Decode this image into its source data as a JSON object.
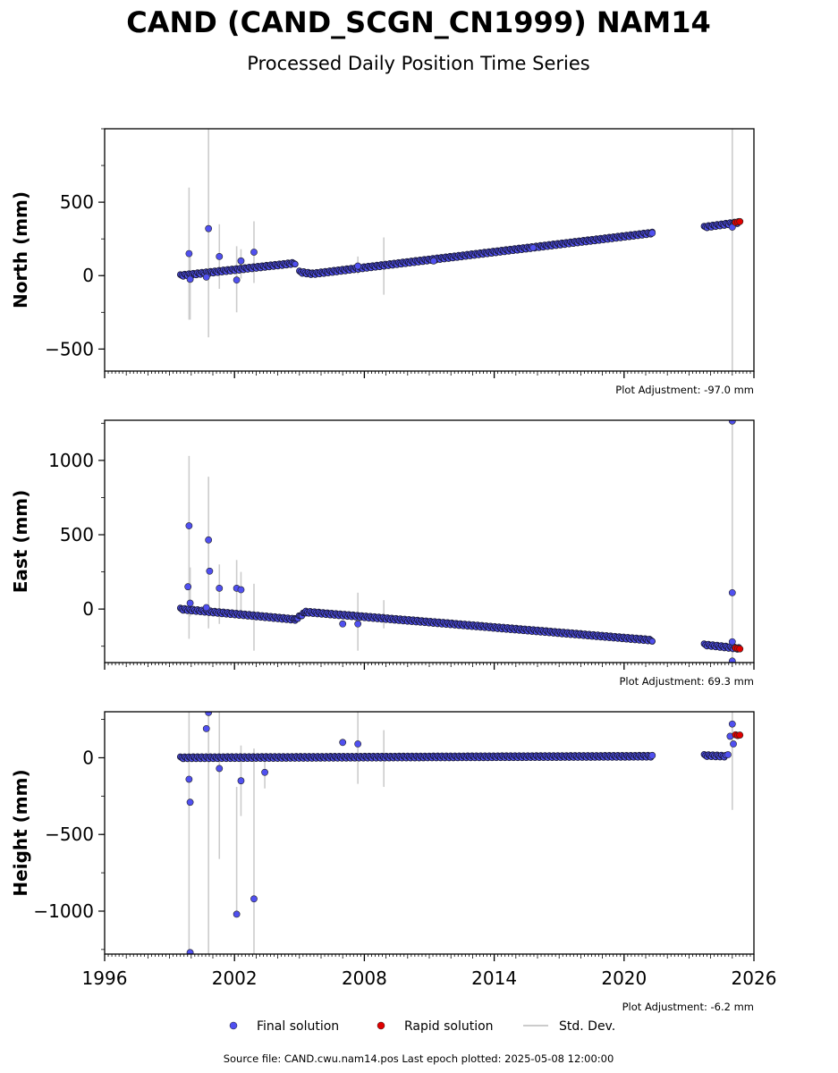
{
  "title": "CAND (CAND_SCGN_CN1999) NAM14",
  "subtitle": "Processed Daily Position Time Series",
  "legend": {
    "final": "Final solution",
    "rapid": "Rapid solution",
    "std": "Std. Dev.",
    "final_color": "#5050f0",
    "rapid_color": "#e00000",
    "std_color": "#cccccc"
  },
  "footer": "Source file: CAND.cwu.nam14.pos  Last epoch plotted: 2025-05-08 12:00:00",
  "chart_data": [
    {
      "type": "scatter",
      "ylabel": "North (mm)",
      "adjustment": "Plot Adjustment: -97.0 mm",
      "xlim": [
        1996,
        2026
      ],
      "ylim": [
        -650,
        1000
      ],
      "yticks": [
        -500,
        0,
        500
      ],
      "trend_segments": [
        {
          "x": [
            1999.5,
            2004.8
          ],
          "y": [
            0,
            85
          ]
        },
        {
          "x": [
            2005.0,
            2005.6
          ],
          "y": [
            25,
            12
          ]
        },
        {
          "x": [
            2005.6,
            2021.3
          ],
          "y": [
            12,
            290
          ]
        },
        {
          "x": [
            2023.7,
            2025.3
          ],
          "y": [
            330,
            362
          ]
        }
      ],
      "final_points": [
        [
          1999.9,
          150
        ],
        [
          1999.95,
          -25
        ],
        [
          2000.8,
          320
        ],
        [
          2000.7,
          -10
        ],
        [
          2001.3,
          130
        ],
        [
          2002.1,
          -30
        ],
        [
          2002.3,
          100
        ],
        [
          2002.9,
          160
        ],
        [
          2007.7,
          65
        ],
        [
          2011.2,
          100
        ],
        [
          2015.8,
          190
        ],
        [
          2025.0,
          330
        ],
        [
          2021.3,
          290
        ]
      ],
      "rapid_points": [
        [
          2025.15,
          362
        ],
        [
          2025.25,
          365
        ],
        [
          2025.35,
          368
        ]
      ],
      "error_bars": [
        [
          1999.9,
          -300,
          600
        ],
        [
          1999.95,
          -300,
          150
        ],
        [
          2000.8,
          -420,
          1000
        ],
        [
          2001.3,
          -90,
          350
        ],
        [
          2002.1,
          -250,
          200
        ],
        [
          2002.3,
          -20,
          180
        ],
        [
          2002.9,
          -50,
          370
        ],
        [
          2007.7,
          10,
          130
        ],
        [
          2008.9,
          -130,
          260
        ],
        [
          2025.0,
          -650,
          1000
        ]
      ]
    },
    {
      "type": "scatter",
      "ylabel": "East (mm)",
      "adjustment": "Plot Adjustment: 69.3 mm",
      "xlim": [
        1996,
        2026
      ],
      "ylim": [
        -360,
        1270
      ],
      "yticks": [
        0,
        500,
        1000
      ],
      "trend_segments": [
        {
          "x": [
            1999.5,
            2004.8
          ],
          "y": [
            0,
            -70
          ]
        },
        {
          "x": [
            2004.8,
            2005.3
          ],
          "y": [
            -70,
            -20
          ]
        },
        {
          "x": [
            2005.3,
            2021.3
          ],
          "y": [
            -20,
            -210
          ]
        },
        {
          "x": [
            2023.7,
            2025.3
          ],
          "y": [
            -240,
            -265
          ]
        }
      ],
      "final_points": [
        [
          1999.9,
          560
        ],
        [
          1999.85,
          150
        ],
        [
          1999.95,
          40
        ],
        [
          2000.8,
          465
        ],
        [
          2000.85,
          255
        ],
        [
          2000.7,
          10
        ],
        [
          2001.3,
          140
        ],
        [
          2002.1,
          140
        ],
        [
          2002.3,
          130
        ],
        [
          2007.0,
          -100
        ],
        [
          2007.7,
          -100
        ],
        [
          2025.0,
          110
        ],
        [
          2025.0,
          -220
        ],
        [
          2025.0,
          1265
        ],
        [
          2025.0,
          -350
        ]
      ],
      "rapid_points": [
        [
          2025.15,
          -262
        ],
        [
          2025.25,
          -265
        ],
        [
          2025.35,
          -268
        ]
      ],
      "error_bars": [
        [
          1999.9,
          -200,
          1030
        ],
        [
          1999.95,
          -50,
          280
        ],
        [
          2000.8,
          -130,
          890
        ],
        [
          2001.3,
          -100,
          300
        ],
        [
          2002.1,
          -60,
          330
        ],
        [
          2002.3,
          -20,
          250
        ],
        [
          2002.9,
          -280,
          170
        ],
        [
          2007.7,
          -280,
          110
        ],
        [
          2008.9,
          -130,
          60
        ],
        [
          2025.0,
          -360,
          1270
        ]
      ]
    },
    {
      "type": "scatter",
      "ylabel": "Height (mm)",
      "adjustment": "Plot Adjustment: -6.2 mm",
      "xlim": [
        1996,
        2026
      ],
      "ylim": [
        -1280,
        300
      ],
      "yticks": [
        -1000,
        -500,
        0
      ],
      "xticks": [
        1996,
        2002,
        2008,
        2014,
        2020,
        2026
      ],
      "trend_segments": [
        {
          "x": [
            1999.5,
            2021.3
          ],
          "y": [
            0,
            10
          ]
        },
        {
          "x": [
            2023.7,
            2024.7
          ],
          "y": [
            15,
            10
          ]
        }
      ],
      "final_points": [
        [
          1999.9,
          -140
        ],
        [
          1999.95,
          -290
        ],
        [
          1999.95,
          -1270
        ],
        [
          2000.7,
          190
        ],
        [
          2000.8,
          295
        ],
        [
          2001.3,
          -70
        ],
        [
          2002.1,
          -1020
        ],
        [
          2002.3,
          -150
        ],
        [
          2002.9,
          -920
        ],
        [
          2003.4,
          -95
        ],
        [
          2007.0,
          100
        ],
        [
          2007.7,
          90
        ],
        [
          2024.8,
          20
        ],
        [
          2024.9,
          140
        ],
        [
          2025.0,
          220
        ],
        [
          2025.05,
          90
        ],
        [
          2021.3,
          15
        ]
      ],
      "rapid_points": [
        [
          2025.15,
          150
        ],
        [
          2025.25,
          145
        ],
        [
          2025.35,
          148
        ]
      ],
      "error_bars": [
        [
          1999.9,
          -1280,
          300
        ],
        [
          2000.8,
          -1280,
          300
        ],
        [
          2001.3,
          -660,
          300
        ],
        [
          2002.1,
          -1040,
          -190
        ],
        [
          2002.3,
          -380,
          80
        ],
        [
          2002.9,
          -1280,
          60
        ],
        [
          2003.4,
          -200,
          30
        ],
        [
          2007.7,
          -170,
          300
        ],
        [
          2008.9,
          -190,
          180
        ],
        [
          2025.0,
          -340,
          300
        ]
      ]
    }
  ]
}
